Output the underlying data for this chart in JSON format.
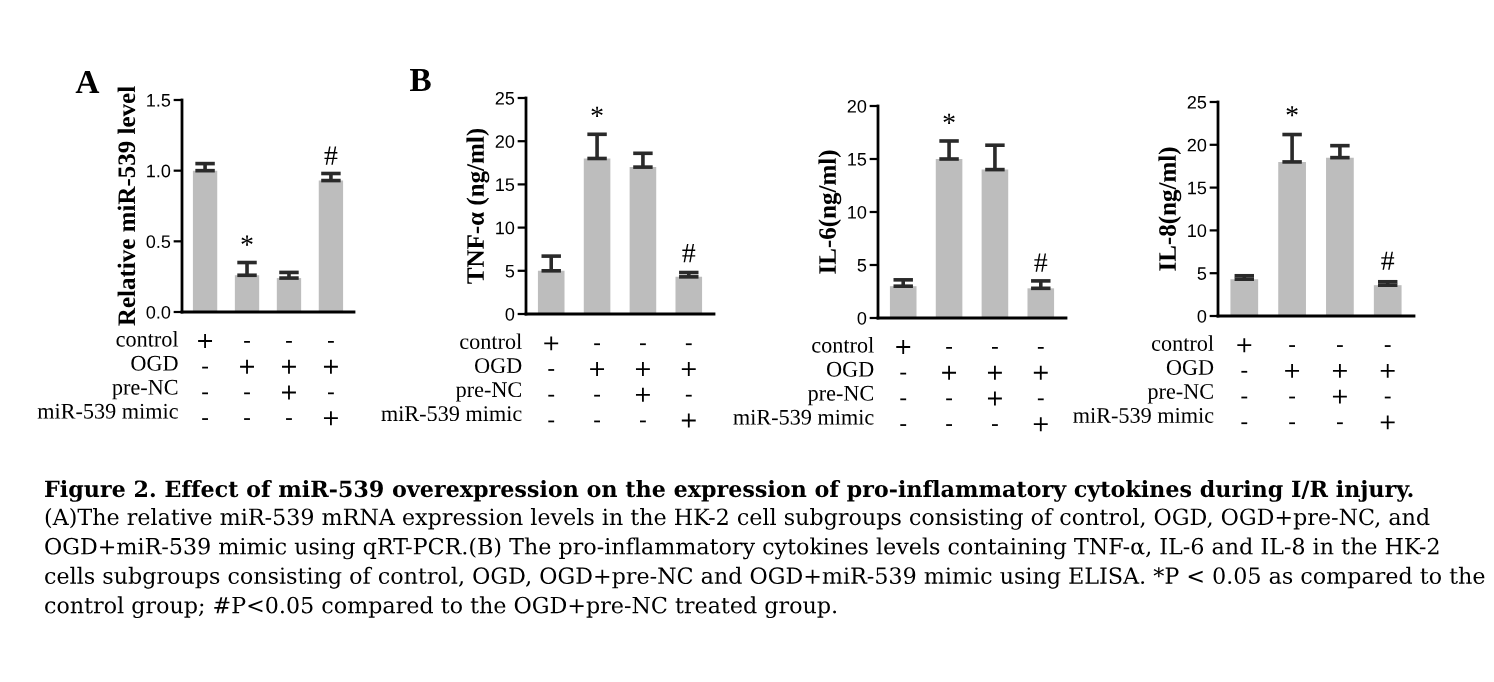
{
  "chart_data": [
    {
      "type": "bar",
      "ylabel": "Relative miR-539 level",
      "categories": [
        "+\n-\n-\n-",
        "-\n+\n-\n-",
        "-\n+\n+\n-",
        "-\n+\n-\n+"
      ],
      "values": [
        1.0,
        0.26,
        0.24,
        0.93
      ],
      "errors": [
        [
          1.0,
          1.05
        ],
        [
          0.26,
          0.35
        ],
        [
          0.24,
          0.28
        ],
        [
          0.93,
          0.98
        ]
      ],
      "color": "#bdbdbd",
      "ylim": [
        0,
        1.5
      ],
      "yticks": [
        {
          "value": 0,
          "label": "0.0"
        },
        {
          "value": 0.5,
          "label": "0.5"
        },
        {
          "value": 1.0,
          "label": "1.0"
        },
        {
          "value": 1.5,
          "label": "1.5"
        }
      ],
      "grid": false,
      "annotations": [
        "control\nOGD\npre-NC\nmiR-539 mimic",
        "A",
        "Figure 2. Effect of miR-539 overexpression on the expression of pro-inflammatory cytokines during I/R injury.",
        "(A)The relative miR-539 mRNA expression levels in the HK-2 cell subgroups consisting of control, OGD, OGD+pre-NC, and OGD+miR-539 mimic using qRT-PCR.(B) The pro-inflammatory cytokines levels containing TNF-α, IL-6 and IL-8 in the HK-2 cells subgroups consisting of control, OGD, OGD+pre-NC and OGD+miR-539 mimic using ELISA. *P < 0.05 as compared to the control group; #P<0.05 compared to the OGD+pre-NC treated group.",
        {
          "text": "*",
          "x": "-\n+\n-\n-",
          "y": 0.37
        },
        {
          "text": "#",
          "x": "-\n+\n-\n+",
          "y": 1.0
        }
      ]
    },
    {
      "type": "bar",
      "ylabel": "TNF-α (ng/ml)",
      "categories": [
        "+\n-\n-\n-",
        "-\n+\n-\n-",
        "-\n+\n+\n-",
        "-\n+\n-\n+"
      ],
      "values": [
        5.0,
        18.0,
        17.0,
        4.3
      ],
      "errors": [
        [
          5.0,
          6.7
        ],
        [
          18.0,
          20.8
        ],
        [
          17.0,
          18.6
        ],
        [
          4.3,
          4.8
        ]
      ],
      "color": "#bdbdbd",
      "ylim": [
        0,
        25
      ],
      "yticks": [
        0,
        5,
        10,
        15,
        20,
        25
      ],
      "grid": false,
      "annotations": [
        "control\nOGD\npre-NC\nmiR-539 mimic",
        "B",
        {
          "text": "*",
          "x": "-\n+\n-\n-",
          "y": 21.2
        },
        {
          "text": "#",
          "x": "-\n+\n-\n+",
          "y": 5.3
        }
      ]
    },
    {
      "type": "bar",
      "ylabel": "IL-6(ng/ml)",
      "categories": [
        "+\n-\n-\n-",
        "-\n+\n-\n-",
        "-\n+\n+\n-",
        "-\n+\n-\n+"
      ],
      "values": [
        3.0,
        15.0,
        14.0,
        2.8
      ],
      "errors": [
        [
          3.0,
          3.6
        ],
        [
          15.0,
          16.7
        ],
        [
          14.0,
          16.3
        ],
        [
          2.8,
          3.5
        ]
      ],
      "color": "#bdbdbd",
      "ylim": [
        0,
        20
      ],
      "yticks": [
        0,
        5,
        10,
        15,
        20
      ],
      "grid": false,
      "annotations": [
        "control\nOGD\npre-NC\nmiR-539 mimic",
        {
          "text": "*",
          "x": "-\n+\n-\n-",
          "y": 17.0
        },
        {
          "text": "#",
          "x": "-\n+\n-\n+",
          "y": 3.8
        }
      ]
    },
    {
      "type": "bar",
      "ylabel": "IL-8(ng/ml)",
      "categories": [
        "+\n-\n-\n-",
        "-\n+\n-\n-",
        "-\n+\n+\n-",
        "-\n+\n-\n+"
      ],
      "values": [
        4.3,
        18.0,
        18.5,
        3.6
      ],
      "errors": [
        [
          4.3,
          4.7
        ],
        [
          18.0,
          21.2
        ],
        [
          18.5,
          19.9
        ],
        [
          3.6,
          4.0
        ]
      ],
      "color": "#bdbdbd",
      "ylim": [
        0,
        25
      ],
      "yticks": [
        0,
        5,
        10,
        15,
        20,
        25
      ],
      "grid": false,
      "annotations": [
        "control\nOGD\npre-NC\nmiR-539 mimic",
        {
          "text": "*",
          "x": "-\n+\n-\n-",
          "y": 21.7
        },
        {
          "text": "#",
          "x": "-\n+\n-\n+",
          "y": 4.7
        }
      ]
    }
  ]
}
